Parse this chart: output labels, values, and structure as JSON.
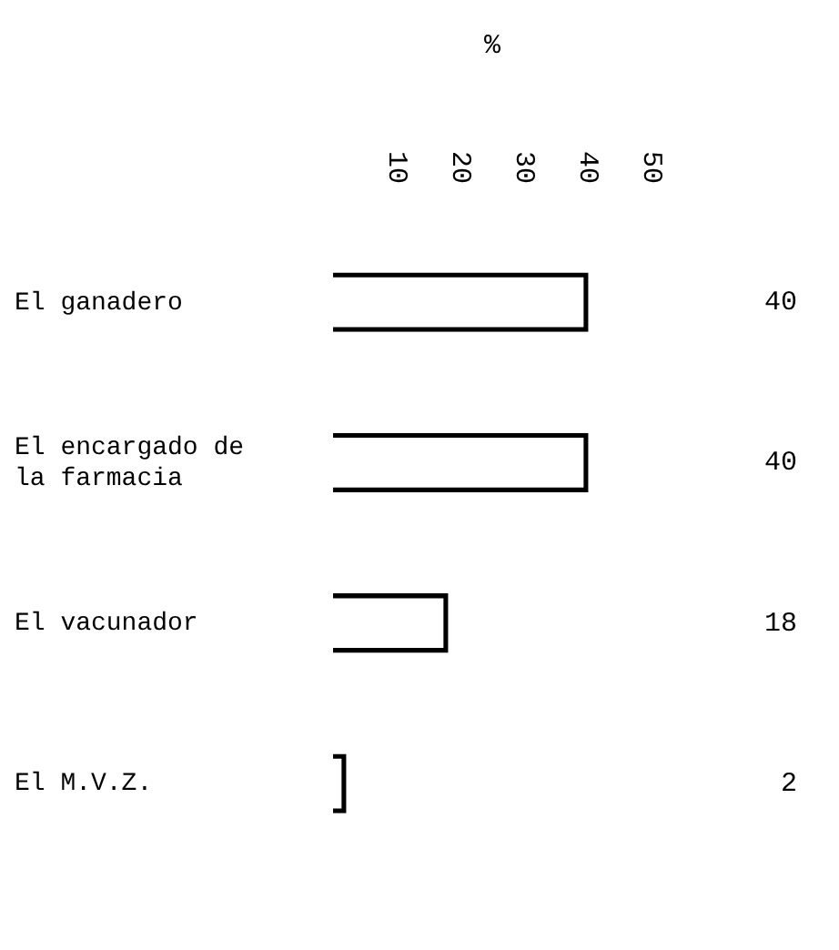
{
  "chart_data": {
    "type": "bar",
    "orientation": "horizontal",
    "xlabel": "%",
    "categories": [
      "El ganadero",
      "El encargado de la farmacia",
      "El vacunador",
      "El M.V.Z."
    ],
    "values": [
      40,
      40,
      18,
      2
    ],
    "color": "#000000",
    "xlim": [
      0,
      50
    ],
    "xticks": [
      10,
      20,
      30,
      40,
      50
    ],
    "data_labels": true,
    "grid": false,
    "legend": false
  }
}
